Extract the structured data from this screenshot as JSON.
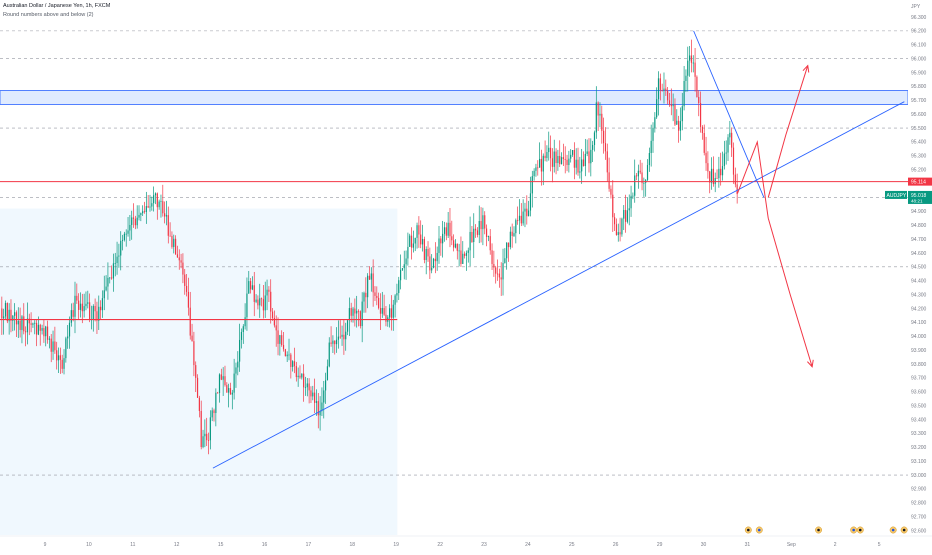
{
  "header": {
    "title": "Australian Dollar / Japanese Yen, 1h, FXCM",
    "subtitle": "Round numbers above and below (2)"
  },
  "scale_currency": "JPY",
  "chart_data": {
    "type": "candlestick",
    "symbol": "AUDJPY",
    "ylim": [
      92.6,
      96.32
    ],
    "y_ticks": [
      92.6,
      92.7,
      92.8,
      92.9,
      93.0,
      93.1,
      93.2,
      93.3,
      93.4,
      93.5,
      93.6,
      93.7,
      93.8,
      93.9,
      94.0,
      94.1,
      94.2,
      94.3,
      94.4,
      94.5,
      94.6,
      94.7,
      94.8,
      94.9,
      95.0,
      95.1,
      95.2,
      95.3,
      95.4,
      95.5,
      95.6,
      95.7,
      95.8,
      95.9,
      96.0,
      96.1,
      96.2,
      96.3
    ],
    "x_labels": [
      {
        "label": "9",
        "t": 0
      },
      {
        "label": "10",
        "t": 1
      },
      {
        "label": "11",
        "t": 2
      },
      {
        "label": "12",
        "t": 3
      },
      {
        "label": "15",
        "t": 4
      },
      {
        "label": "16",
        "t": 5
      },
      {
        "label": "17",
        "t": 6
      },
      {
        "label": "18",
        "t": 7
      },
      {
        "label": "19",
        "t": 8
      },
      {
        "label": "22",
        "t": 9
      },
      {
        "label": "23",
        "t": 10
      },
      {
        "label": "24",
        "t": 11
      },
      {
        "label": "25",
        "t": 12
      },
      {
        "label": "26",
        "t": 13
      },
      {
        "label": "29",
        "t": 14
      },
      {
        "label": "30",
        "t": 15
      },
      {
        "label": "31",
        "t": 16
      },
      {
        "label": "Sep",
        "t": 17
      },
      {
        "label": "2",
        "t": 18
      },
      {
        "label": "5",
        "t": 19
      },
      {
        "label": "6",
        "t": 20
      }
    ],
    "last_bar_t": 16.8,
    "price_path": [
      [
        0.0,
        94.2
      ],
      [
        0.5,
        94.1
      ],
      [
        1.0,
        94.05
      ],
      [
        1.4,
        93.8
      ],
      [
        1.7,
        94.25
      ],
      [
        2.2,
        94.15
      ],
      [
        2.6,
        94.5
      ],
      [
        3.0,
        94.85
      ],
      [
        3.3,
        94.9
      ],
      [
        3.6,
        95.0
      ],
      [
        3.9,
        94.7
      ],
      [
        4.2,
        94.4
      ],
      [
        4.5,
        93.6
      ],
      [
        4.6,
        93.2
      ],
      [
        4.75,
        93.3
      ],
      [
        5.0,
        93.7
      ],
      [
        5.3,
        93.6
      ],
      [
        5.5,
        94.0
      ],
      [
        5.7,
        94.4
      ],
      [
        5.9,
        94.2
      ],
      [
        6.1,
        94.3
      ],
      [
        6.3,
        94.0
      ],
      [
        6.6,
        93.8
      ],
      [
        6.9,
        93.7
      ],
      [
        7.1,
        93.55
      ],
      [
        7.3,
        93.45
      ],
      [
        7.5,
        93.9
      ],
      [
        7.8,
        94.0
      ],
      [
        8.0,
        94.2
      ],
      [
        8.2,
        94.1
      ],
      [
        8.4,
        94.45
      ],
      [
        8.6,
        94.3
      ],
      [
        8.8,
        94.05
      ],
      [
        9.0,
        94.3
      ],
      [
        9.3,
        94.65
      ],
      [
        9.5,
        94.75
      ],
      [
        9.8,
        94.5
      ],
      [
        10.2,
        94.8
      ],
      [
        10.5,
        94.55
      ],
      [
        10.8,
        94.75
      ],
      [
        11.0,
        94.85
      ],
      [
        11.2,
        94.55
      ],
      [
        11.4,
        94.4
      ],
      [
        11.6,
        94.7
      ],
      [
        11.8,
        94.85
      ],
      [
        12.0,
        94.9
      ],
      [
        12.2,
        95.2
      ],
      [
        12.5,
        95.3
      ],
      [
        12.8,
        95.25
      ],
      [
        13.0,
        95.3
      ],
      [
        13.2,
        95.2
      ],
      [
        13.5,
        95.35
      ],
      [
        13.6,
        95.7
      ],
      [
        13.75,
        95.4
      ],
      [
        13.9,
        95.0
      ],
      [
        14.05,
        94.75
      ],
      [
        14.3,
        94.9
      ],
      [
        14.5,
        95.2
      ],
      [
        14.7,
        95.1
      ],
      [
        14.9,
        95.5
      ],
      [
        15.0,
        95.85
      ],
      [
        15.2,
        95.7
      ],
      [
        15.35,
        95.6
      ],
      [
        15.5,
        95.5
      ],
      [
        15.6,
        95.9
      ],
      [
        15.75,
        96.0
      ],
      [
        15.85,
        95.8
      ],
      [
        16.0,
        95.4
      ],
      [
        16.1,
        95.2
      ],
      [
        16.3,
        95.1
      ],
      [
        16.5,
        95.3
      ],
      [
        16.6,
        95.5
      ],
      [
        16.7,
        95.2
      ],
      [
        16.8,
        95.02
      ]
    ],
    "vol_seed": [
      0.22,
      0.17,
      0.12,
      0.09,
      0.06,
      0.05
    ],
    "horizontal_lines": [
      {
        "name": "resistance",
        "price": 95.114,
        "color": "#f23645"
      },
      {
        "name": "mid-range",
        "price": 94.12,
        "color": "#f23645"
      }
    ],
    "resistance_zone": {
      "from": 95.67,
      "to": 95.77,
      "color": "#2962ff"
    },
    "round_levels": [
      96.2,
      96.0,
      95.5,
      95.0,
      94.5,
      93.0
    ],
    "trendline": {
      "t1": 4.85,
      "p1": 93.05,
      "t2": 20.6,
      "p2": 95.69
    },
    "wedge_line": {
      "t1": 15.8,
      "p1": 96.2,
      "t2": 17.4,
      "p2": 95.0
    },
    "projection_points": [
      [
        16.8,
        95.03
      ],
      [
        17.25,
        95.4
      ],
      [
        17.5,
        94.85
      ]
    ],
    "scenario_up": [
      [
        17.5,
        95.0
      ],
      [
        17.9,
        95.45
      ],
      [
        18.4,
        95.95
      ]
    ],
    "scenario_down": [
      [
        17.5,
        94.85
      ],
      [
        18.0,
        94.3
      ],
      [
        18.5,
        93.78
      ]
    ],
    "shaded_range": {
      "t_from": 0.0,
      "t_to": 9.05
    },
    "price_label": {
      "value": "95.114",
      "color": "#f23645"
    },
    "symbol_label": {
      "symbol": "AUDJPY",
      "value": "95.018",
      "countdown": "48:21",
      "color": "#089981"
    },
    "event_markers_t": [
      17.0,
      17.25,
      18.6,
      19.4,
      19.55,
      20.3,
      20.55
    ],
    "colors": {
      "up": "#089981",
      "down": "#f23645",
      "trend": "#2962ff",
      "shade": "#e3f2fd"
    }
  }
}
